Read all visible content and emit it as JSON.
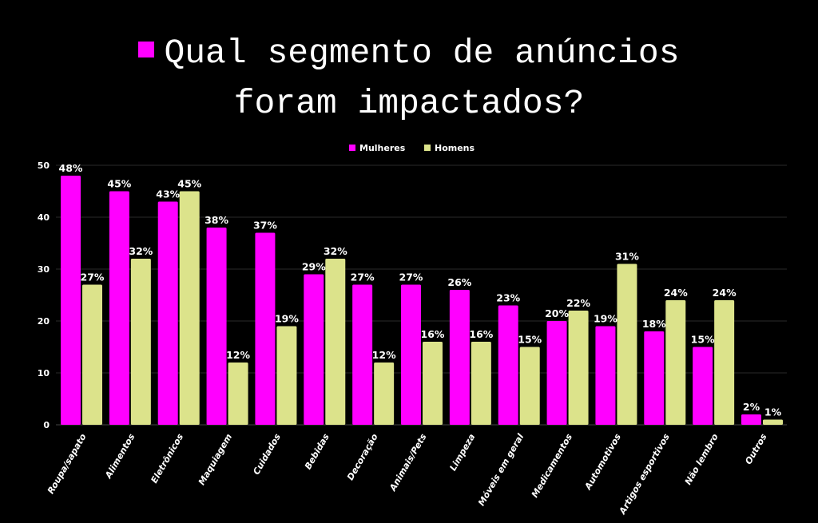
{
  "title_line1": "Qual segmento de anúncios",
  "title_line2": "foram impactados?",
  "chart_data": {
    "type": "bar",
    "categories": [
      "Roupa/sapato",
      "Alimentos",
      "Eletrônicos",
      "Maquiagem",
      "Cuidados",
      "Bebidas",
      "Decoração",
      "Animais/Pets",
      "Limpeza",
      "Móveis em geral",
      "Medicamentos",
      "Automotivos",
      "Artigos esportivos",
      "Não lembro",
      "Outros"
    ],
    "series": [
      {
        "name": "Mulheres",
        "color": "#ff00ff",
        "values": [
          48,
          45,
          43,
          38,
          37,
          29,
          27,
          27,
          26,
          23,
          20,
          19,
          18,
          15,
          2
        ]
      },
      {
        "name": "Homens",
        "color": "#dce38b",
        "values": [
          27,
          32,
          45,
          12,
          19,
          32,
          12,
          16,
          16,
          15,
          22,
          31,
          24,
          24,
          1
        ]
      }
    ],
    "data_label_suffix": "%",
    "ylim": [
      0,
      50
    ],
    "yticks": [
      0,
      10,
      20,
      30,
      40,
      50
    ],
    "grid": true,
    "legend": "top",
    "background": "#000000"
  }
}
